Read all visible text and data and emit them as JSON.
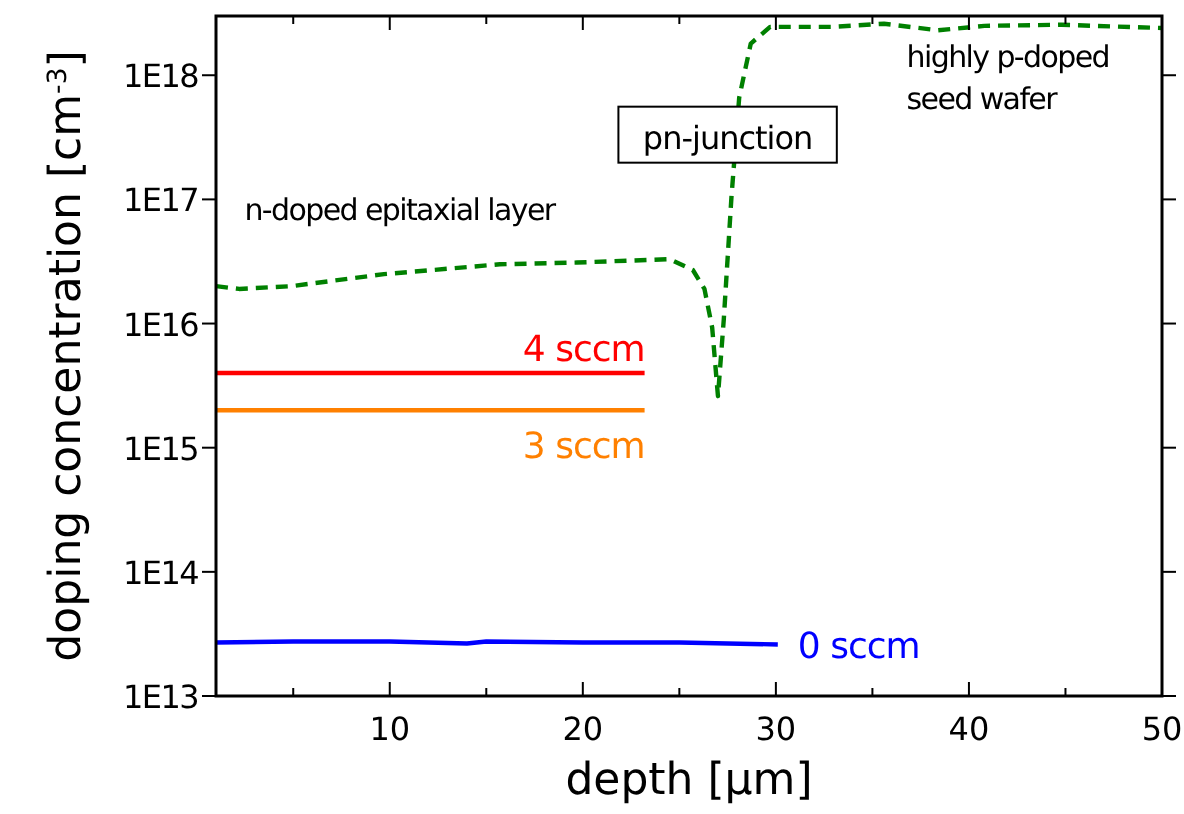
{
  "chart_data": {
    "type": "line",
    "xlabel": "depth [µm]",
    "ylabel": "doping concentration [cm$^{-3}$]",
    "log": "y",
    "grid": false,
    "xlim": [
      1,
      50
    ],
    "ylim": [
      10000000000000.0,
      3e+18
    ],
    "xticks": [
      {
        "value": 5,
        "label": null
      },
      10,
      {
        "value": 15,
        "label": null
      },
      20,
      {
        "value": 25,
        "label": null
      },
      30,
      {
        "value": 35,
        "label": null
      },
      40,
      {
        "value": 45,
        "label": null
      },
      50
    ],
    "yticks": [
      {
        "value": 10000000000000.0,
        "label": "1E13"
      },
      {
        "value": 100000000000000.0,
        "label": "1E14"
      },
      {
        "value": 1000000000000000.0,
        "label": "1E15"
      },
      {
        "value": 1e+16,
        "label": "1E16"
      },
      {
        "value": 1e+17,
        "label": "1E17"
      },
      {
        "value": 1e+18,
        "label": "1E18"
      }
    ],
    "series": [
      {
        "name": "4 sccm",
        "color": "#ff0000",
        "line_style": "solid",
        "x": [
          1,
          23.2
        ],
        "values": [
          4000000000000000.0,
          4000000000000000.0
        ]
      },
      {
        "name": "3 sccm",
        "color": "#ff8000",
        "line_style": "solid",
        "x": [
          1,
          23.2
        ],
        "values": [
          2000000000000000.0,
          2000000000000000.0
        ]
      },
      {
        "name": "0 sccm",
        "color": "#0000ff",
        "line_style": "solid",
        "x": [
          1,
          5,
          10,
          14,
          15,
          20,
          25,
          30.1
        ],
        "values": [
          27000000000000.0,
          27500000000000.0,
          27500000000000.0,
          26500000000000.0,
          27500000000000.0,
          27000000000000.0,
          27000000000000.0,
          26000000000000.0
        ]
      },
      {
        "color": "#008000",
        "line_style": "dashed",
        "x": [
          1,
          2.2,
          4.9,
          9.7,
          15.7,
          19.7,
          24.5,
          25.7,
          26.3,
          26.7,
          27,
          27.3,
          27.7,
          28.1,
          28.7,
          29.7,
          32.9,
          35.6,
          38.4,
          40.8,
          44.8,
          50
        ],
        "values": [
          2e+16,
          1.9e+16,
          2e+16,
          2.5e+16,
          3e+16,
          3.1e+16,
          3.3e+16,
          2.7e+16,
          1.9e+16,
          9300000000000000.0,
          2600000000000000.0,
          1.07e+16,
          1.05e+17,
          6.6e+17,
          1.8e+18,
          2.45e+18,
          2.45e+18,
          2.6e+18,
          2.3e+18,
          2.5e+18,
          2.55e+18,
          2.4e+18
        ]
      }
    ],
    "annotations": [
      "n-doped epitaxial layer",
      {
        "text": "pn-junction",
        "x": 27.5,
        "y": 3.2e+17
      },
      "highly p-doped\nseed wafer"
    ]
  }
}
